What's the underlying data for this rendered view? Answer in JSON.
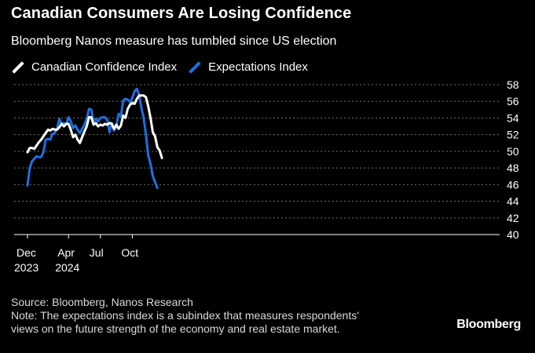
{
  "title": "Canadian Consumers Are Losing Confidence",
  "subtitle": "Bloomberg Nanos measure has tumbled since US election",
  "colors": {
    "background": "#000000",
    "confidence": "#ffffff",
    "expectations": "#1f6fe0",
    "grid": "#6e6e6e"
  },
  "source": "Source: Bloomberg, Nanos Research",
  "note_line1": "Note: The expectations index is a subindex that measures respondents'",
  "note_line2": "views on the future strength of the economy and real estate market.",
  "brand": "Bloomberg",
  "chart_data": {
    "type": "line",
    "title": "Canadian Consumers Are Losing Confidence",
    "subtitle": "Bloomberg Nanos measure has tumbled since US election",
    "ylim": [
      40,
      58
    ],
    "y_ticks": [
      40,
      42,
      44,
      46,
      48,
      50,
      52,
      54,
      56,
      58
    ],
    "y_axis_side": "right",
    "grid": "horizontal dashed",
    "legend_position": "top-left",
    "x_tick_labels": [
      {
        "week": 0,
        "label": "Dec",
        "sub": "2023"
      },
      {
        "week": 18,
        "label": "Apr",
        "sub": "2024"
      },
      {
        "week": 32,
        "label": "Jul",
        "sub": ""
      },
      {
        "week": 46,
        "label": "Oct",
        "sub": ""
      }
    ],
    "x_unit": "weekly observations from Dec 2023",
    "series": [
      {
        "name": "Canadian Confidence Index",
        "color": "#ffffff",
        "values": [
          49.9,
          50.4,
          50.4,
          50.3,
          50.7,
          51.1,
          51.4,
          51.8,
          52.2,
          52.6,
          52.5,
          52.7,
          52.6,
          52.6,
          52.9,
          53.3,
          53.0,
          53.3,
          53.3,
          52.6,
          51.7,
          52.0,
          51.4,
          51.0,
          51.7,
          52.4,
          53.0,
          54.1,
          54.1,
          53.2,
          53.4,
          53.0,
          53.2,
          53.1,
          53.3,
          53.2,
          53.4,
          53.3,
          52.7,
          53.2,
          52.7,
          53.1,
          54.3,
          54.0,
          55.1,
          55.6,
          55.8,
          55.7,
          56.3,
          56.7,
          56.7,
          56.7,
          56.5,
          55.4,
          54.0,
          52.3,
          51.8,
          50.5,
          50.1,
          49.2
        ]
      },
      {
        "name": "Expectations Index",
        "color": "#1f6fe0",
        "values": [
          45.9,
          48.0,
          48.8,
          49.1,
          49.4,
          49.3,
          49.3,
          49.9,
          51.4,
          51.5,
          51.4,
          52.1,
          52.2,
          52.8,
          53.9,
          53.2,
          53.4,
          53.2,
          54.1,
          53.6,
          52.8,
          53.1,
          52.6,
          52.2,
          52.7,
          53.2,
          53.9,
          55.1,
          55.0,
          53.6,
          53.9,
          53.6,
          54.0,
          54.1,
          54.1,
          53.8,
          52.3,
          53.4,
          52.5,
          53.0,
          54.5,
          54.2,
          56.1,
          56.3,
          56.2,
          55.9,
          56.4,
          57.2,
          57.5,
          56.8,
          55.2,
          54.0,
          52.0,
          49.5,
          48.5,
          47.0,
          46.3,
          45.6
        ]
      }
    ]
  }
}
